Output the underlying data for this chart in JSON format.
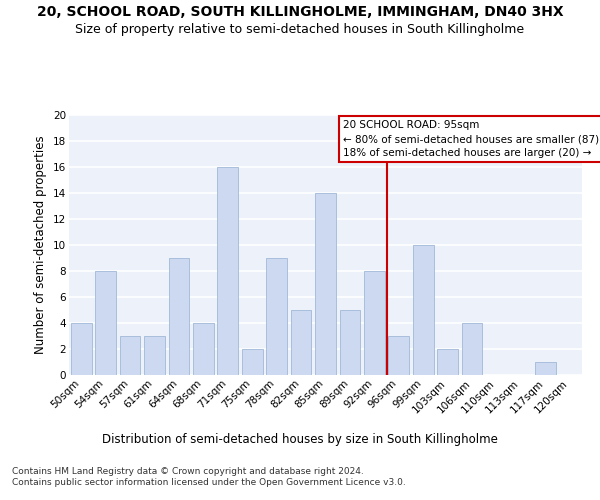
{
  "title": "20, SCHOOL ROAD, SOUTH KILLINGHOLME, IMMINGHAM, DN40 3HX",
  "subtitle": "Size of property relative to semi-detached houses in South Killingholme",
  "xlabel": "Distribution of semi-detached houses by size in South Killingholme",
  "ylabel": "Number of semi-detached properties",
  "footer": "Contains HM Land Registry data © Crown copyright and database right 2024.\nContains public sector information licensed under the Open Government Licence v3.0.",
  "categories": [
    "50sqm",
    "54sqm",
    "57sqm",
    "61sqm",
    "64sqm",
    "68sqm",
    "71sqm",
    "75sqm",
    "78sqm",
    "82sqm",
    "85sqm",
    "89sqm",
    "92sqm",
    "96sqm",
    "99sqm",
    "103sqm",
    "106sqm",
    "110sqm",
    "113sqm",
    "117sqm",
    "120sqm"
  ],
  "values": [
    4,
    8,
    3,
    3,
    9,
    4,
    16,
    2,
    9,
    5,
    14,
    5,
    8,
    3,
    10,
    2,
    4,
    0,
    0,
    1,
    0
  ],
  "bar_color": "#ccd9f0",
  "bar_edge_color": "#a0b8d8",
  "reference_line_label": "20 SCHOOL ROAD: 95sqm",
  "annotation_line1": "← 80% of semi-detached houses are smaller (87)",
  "annotation_line2": "18% of semi-detached houses are larger (20) →",
  "annotation_box_color": "#cc0000",
  "ylim": [
    0,
    20
  ],
  "yticks": [
    0,
    2,
    4,
    6,
    8,
    10,
    12,
    14,
    16,
    18,
    20
  ],
  "bg_color": "#edf1f9",
  "grid_color": "#ffffff",
  "title_fontsize": 10,
  "subtitle_fontsize": 9,
  "axis_label_fontsize": 8.5,
  "tick_fontsize": 7.5,
  "footer_fontsize": 6.5
}
